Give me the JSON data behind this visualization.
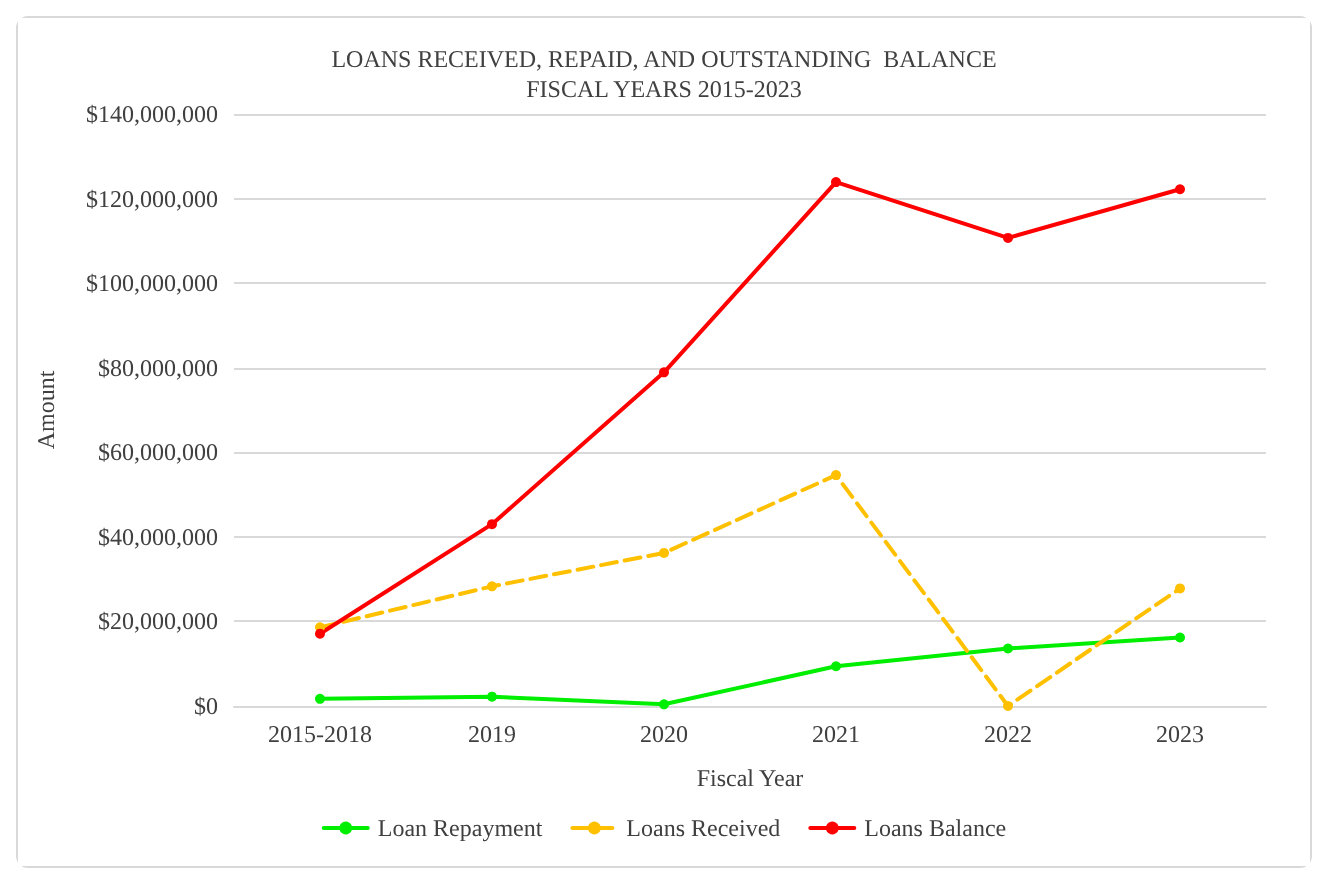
{
  "chart_data": {
    "type": "line",
    "title": "LOANS RECEIVED, REPAID, AND OUTSTANDING  BALANCE\nFISCAL YEARS 2015-2023",
    "xlabel": "Fiscal Year",
    "ylabel": "Amount",
    "categories": [
      "2015-2018",
      "2019",
      "2020",
      "2021",
      "2022",
      "2023"
    ],
    "series": [
      {
        "name": "Loan Repayment",
        "color": "#00ee00",
        "line_style": "solid",
        "values": [
          1700000,
          2200000,
          400000,
          9400000,
          13600000,
          16200000
        ]
      },
      {
        "name": "Loans Received",
        "color": "#ffc000",
        "line_style": "dashed",
        "values": [
          18600000,
          28300000,
          36200000,
          54600000,
          0,
          27800000
        ]
      },
      {
        "name": "Loans Balance",
        "color": "#ff0000",
        "line_style": "solid",
        "values": [
          17100000,
          43000000,
          78900000,
          123900000,
          110700000,
          122200000
        ]
      }
    ],
    "ylim": [
      0,
      140000000
    ],
    "yticks": [
      {
        "value": 0,
        "label": "$0"
      },
      {
        "value": 20000000,
        "label": "$20,000,000"
      },
      {
        "value": 40000000,
        "label": "$40,000,000"
      },
      {
        "value": 60000000,
        "label": "$60,000,000"
      },
      {
        "value": 80000000,
        "label": "$80,000,000"
      },
      {
        "value": 100000000,
        "label": "$100,000,000"
      },
      {
        "value": 120000000,
        "label": "$120,000,000"
      },
      {
        "value": 140000000,
        "label": "$140,000,000"
      }
    ],
    "grid": "y",
    "legend": "bottom",
    "marker": "circle"
  }
}
